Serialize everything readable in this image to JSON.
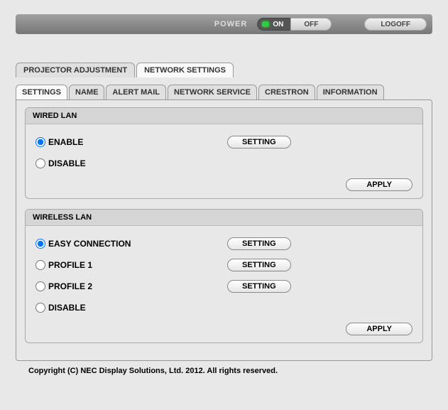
{
  "topbar": {
    "power_label": "POWER",
    "on_label": "ON",
    "off_label": "OFF",
    "logoff_label": "LOGOFF",
    "led_color": "#2ecc40"
  },
  "top_tabs": [
    {
      "label": "PROJECTOR ADJUSTMENT",
      "active": false
    },
    {
      "label": "NETWORK SETTINGS",
      "active": true
    }
  ],
  "sub_tabs": [
    {
      "label": "SETTINGS",
      "active": true
    },
    {
      "label": "NAME",
      "active": false
    },
    {
      "label": "ALERT MAIL",
      "active": false
    },
    {
      "label": "NETWORK SERVICE",
      "active": false
    },
    {
      "label": "CRESTRON",
      "active": false
    },
    {
      "label": "INFORMATION",
      "active": false
    }
  ],
  "wired": {
    "title": "WIRED LAN",
    "enable_label": "ENABLE",
    "disable_label": "DISABLE",
    "setting_label": "SETTING",
    "apply_label": "APPLY",
    "selected": "enable"
  },
  "wireless": {
    "title": "WIRELESS LAN",
    "easy_label": "EASY CONNECTION",
    "profile1_label": "PROFILE 1",
    "profile2_label": "PROFILE 2",
    "disable_label": "DISABLE",
    "setting_label": "SETTING",
    "apply_label": "APPLY",
    "selected": "easy"
  },
  "footer": "Copyright (C) NEC Display Solutions, Ltd. 2012. All rights reserved.",
  "colors": {
    "page_bg": "#e8e8e8",
    "panel_border": "#999999",
    "fieldset_title_bg": "#d5d5d5"
  }
}
